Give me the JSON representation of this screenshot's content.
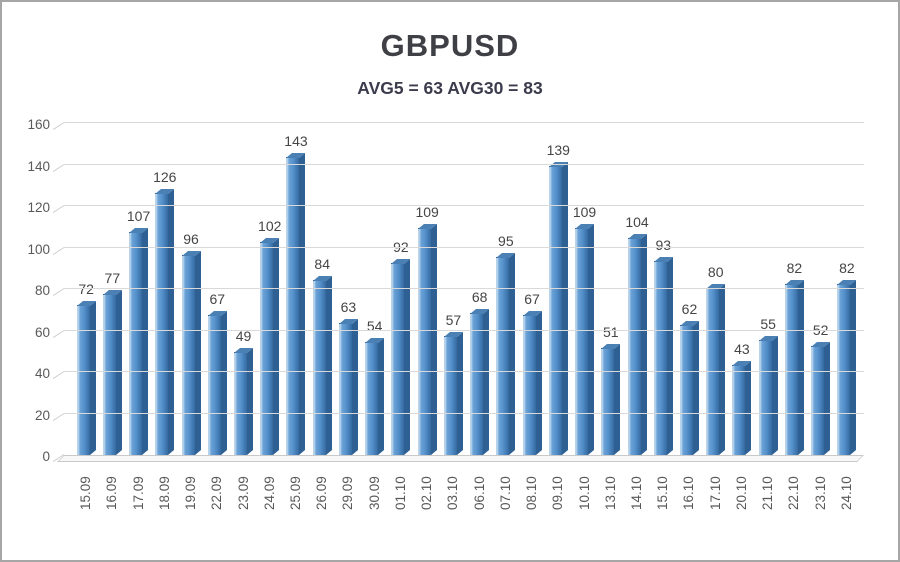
{
  "title": "GBPUSD",
  "subtitle": "AVG5 = 63 AVG30 = 83",
  "chart_data": {
    "type": "bar",
    "style": "3d-column",
    "title": "GBPUSD",
    "subtitle": "AVG5 = 63 AVG30 = 83",
    "categories": [
      "15.09",
      "16.09",
      "17.09",
      "18.09",
      "19.09",
      "22.09",
      "23.09",
      "24.09",
      "25.09",
      "26.09",
      "29.09",
      "30.09",
      "01.10",
      "02.10",
      "03.10",
      "06.10",
      "07.10",
      "08.10",
      "09.10",
      "10.10",
      "13.10",
      "14.10",
      "15.10",
      "16.10",
      "17.10",
      "20.10",
      "21.10",
      "22.10",
      "23.10",
      "24.10"
    ],
    "values": [
      72,
      77,
      107,
      126,
      96,
      67,
      49,
      102,
      143,
      84,
      63,
      54,
      92,
      109,
      57,
      68,
      95,
      67,
      139,
      109,
      51,
      104,
      93,
      62,
      80,
      43,
      55,
      82,
      52,
      82
    ],
    "xlabel": "",
    "ylabel": "",
    "ylim": [
      0,
      160
    ],
    "ytick_step": 20,
    "yticks": [
      0,
      20,
      40,
      60,
      80,
      100,
      120,
      140,
      160
    ],
    "grid": true,
    "legend": false,
    "avg5": 63,
    "avg30": 83,
    "colors": {
      "bar_face": "#5591cb",
      "bar_face_highlight": "#b8d4ec",
      "bar_side": "#2e6093",
      "bar_top": "#4a80b4",
      "gridline": "#d9d9d9",
      "axis_label": "#595959",
      "value_label": "#454545",
      "title": "#3f3f46",
      "subtitle": "#3b3b4d",
      "frame_border": "#a6a6a6",
      "background": "#ffffff"
    }
  }
}
